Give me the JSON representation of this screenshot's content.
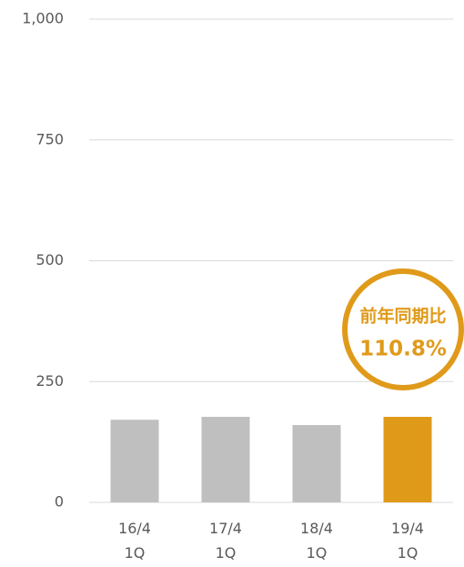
{
  "chart_data": {
    "type": "bar",
    "categories": [
      "16/4\n1Q",
      "17/4\n1Q",
      "18/4\n1Q",
      "19/4\n1Q"
    ],
    "values": [
      171,
      177,
      160,
      177
    ],
    "colors": [
      "#bfbfbf",
      "#bfbfbf",
      "#bfbfbf",
      "#e09a1a"
    ],
    "ylim": [
      0,
      1000
    ],
    "yticks": [
      0,
      250,
      500,
      750,
      {
        "value": 1000,
        "label": "1,000"
      }
    ],
    "grid": true,
    "annotation": {
      "label": "前年同期比",
      "value": "110.8%",
      "color": "#e09a1a"
    }
  }
}
